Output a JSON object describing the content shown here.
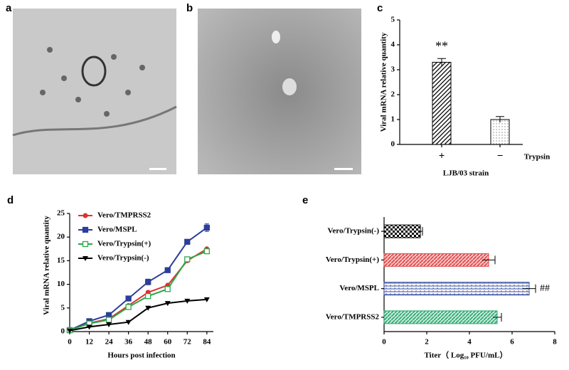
{
  "panel_labels": [
    "a",
    "b",
    "c",
    "d",
    "e"
  ],
  "chart_data": [
    {
      "type": "bar",
      "categories": [
        "+",
        "−"
      ],
      "values": [
        3.3,
        1.0
      ],
      "errors": [
        0.15,
        0.12
      ],
      "ylim": [
        0,
        5
      ],
      "yticks": [
        0,
        1,
        2,
        3,
        4,
        5
      ],
      "ylabel": "Viral mRNA relative quantity",
      "xlabel": "LJB/03 strain",
      "axis_note": "Trypsin",
      "annotations": [
        "**",
        null
      ],
      "color": "#000000"
    },
    {
      "type": "line",
      "x": [
        0,
        12,
        24,
        36,
        48,
        60,
        72,
        84
      ],
      "xlim": [
        0,
        88
      ],
      "xticks": [
        0,
        12,
        24,
        36,
        48,
        60,
        72,
        84
      ],
      "ylim": [
        0,
        25
      ],
      "yticks": [
        0,
        5,
        10,
        15,
        20,
        25
      ],
      "xlabel": "Hours post infection",
      "ylabel": "Viral mRNA relative quantity",
      "legend": "top-left",
      "series": [
        {
          "name": "Vero/TMPRSS2",
          "color": "#e03030",
          "marker": "circle",
          "values": [
            0.3,
            1.8,
            2.7,
            5.5,
            8.3,
            9.8,
            15,
            17.5
          ]
        },
        {
          "name": "Vero/MSPL",
          "color": "#2c3e9a",
          "marker": "square",
          "values": [
            0.3,
            2.2,
            3.5,
            7,
            10.5,
            13,
            19,
            22
          ],
          "errors": [
            0.2,
            0.3,
            0.3,
            0.4,
            0.6,
            0.4,
            0.3,
            0.8
          ]
        },
        {
          "name": "Vero/Trypsin(+)",
          "color": "#2aa84a",
          "marker": "open-square",
          "values": [
            0.3,
            1.7,
            2.5,
            5.2,
            7.5,
            9,
            15.3,
            17
          ]
        },
        {
          "name": "Vero/Trypsin(-)",
          "color": "#000000",
          "marker": "triangle",
          "values": [
            0.2,
            1.0,
            1.5,
            2.0,
            5,
            6,
            6.5,
            6.8
          ]
        }
      ]
    },
    {
      "type": "barh",
      "categories": [
        "Vero/Trypsin(-)",
        "Vero/Trypsin(+)",
        "Vero/MSPL",
        "Vero/TMPRSS2"
      ],
      "values": [
        1.7,
        4.9,
        6.8,
        5.3
      ],
      "errors": [
        0.1,
        0.3,
        0.3,
        0.2
      ],
      "colors": [
        "#000000",
        "#e05050",
        "#3a4fa0",
        "#2aa870"
      ],
      "xlim": [
        0,
        8
      ],
      "xticks": [
        0,
        2,
        4,
        6,
        8
      ],
      "xlabel": "Titer（ Log₁₀ PFU/mL）",
      "annotations": [
        null,
        null,
        "##",
        null
      ]
    }
  ]
}
